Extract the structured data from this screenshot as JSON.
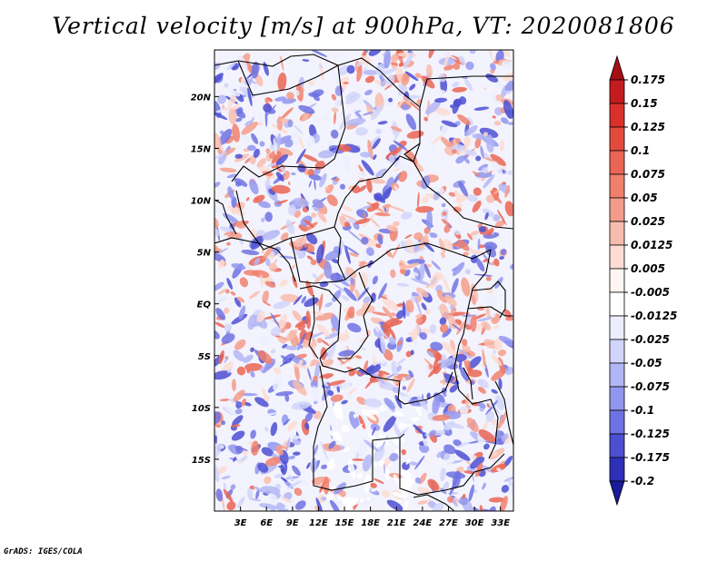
{
  "title": "Vertical velocity [m/s] at 900hPa, VT: 2020081806",
  "footer": "GrADS: IGES/COLA",
  "map": {
    "lon_range": [
      0,
      34.5
    ],
    "lat_range": [
      -20,
      24.5
    ],
    "lat_ticks": [
      "20N",
      "15N",
      "10N",
      "5N",
      "EQ",
      "5S",
      "10S",
      "15S"
    ],
    "lon_ticks": [
      "3E",
      "6E",
      "9E",
      "12E",
      "15E",
      "18E",
      "21E",
      "24E",
      "27E",
      "30E",
      "33E"
    ]
  },
  "colorbar": {
    "labels": [
      "0.175",
      "0.15",
      "0.125",
      "0.1",
      "0.075",
      "0.05",
      "0.025",
      "0.0125",
      "0.005",
      "-0.005",
      "-0.0125",
      "-0.025",
      "-0.05",
      "-0.075",
      "-0.1",
      "-0.125",
      "-0.175",
      "-0.2"
    ],
    "colors": [
      "#a50f15",
      "#c41b1f",
      "#d9302c",
      "#e34a3e",
      "#ea6553",
      "#f0806d",
      "#f49c8a",
      "#f8bcae",
      "#fcdcd4",
      "#fff5f3",
      "#ffffff",
      "#eceefd",
      "#d2d5fa",
      "#b3b6f5",
      "#9296ee",
      "#6f72e2",
      "#4c4fd2",
      "#2e30b8",
      "#1a1b99"
    ]
  }
}
